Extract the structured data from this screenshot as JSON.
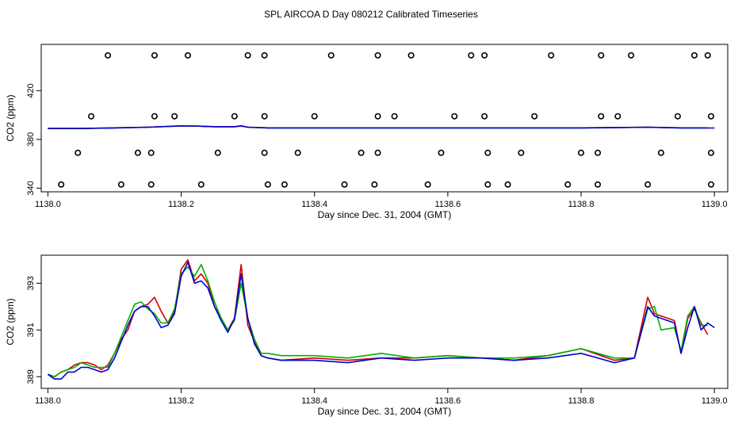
{
  "title": "SPL AIRCOA D  Day 080212  Calibrated Timeseries",
  "chart_data": [
    {
      "type": "scatter",
      "xlabel": "Day since Dec. 31, 2004 (GMT)",
      "ylabel": "CO2 (ppm)",
      "xlim": [
        1137.99,
        1139.02
      ],
      "ylim": [
        337,
        458
      ],
      "xticks": [
        1138.0,
        1138.2,
        1138.4,
        1138.6,
        1138.8,
        1139.0
      ],
      "xtick_labels": [
        "1138.0",
        "1138.2",
        "1138.4",
        "1138.6",
        "1138.8",
        "1139.0"
      ],
      "yticks": [
        340,
        380,
        420
      ],
      "ytick_labels": [
        "340",
        "380",
        "420"
      ],
      "grid": false,
      "markers": {
        "color": "#000000",
        "points": [
          [
            1138.09,
            449
          ],
          [
            1138.16,
            449
          ],
          [
            1138.21,
            449
          ],
          [
            1138.3,
            449
          ],
          [
            1138.325,
            449
          ],
          [
            1138.425,
            449
          ],
          [
            1138.495,
            449
          ],
          [
            1138.545,
            449
          ],
          [
            1138.635,
            449
          ],
          [
            1138.655,
            449
          ],
          [
            1138.755,
            449
          ],
          [
            1138.83,
            449
          ],
          [
            1138.875,
            449
          ],
          [
            1138.97,
            449
          ],
          [
            1138.99,
            449
          ],
          [
            1138.065,
            399
          ],
          [
            1138.16,
            399
          ],
          [
            1138.19,
            399
          ],
          [
            1138.28,
            399
          ],
          [
            1138.325,
            399
          ],
          [
            1138.4,
            399
          ],
          [
            1138.495,
            399
          ],
          [
            1138.52,
            399
          ],
          [
            1138.61,
            399
          ],
          [
            1138.655,
            399
          ],
          [
            1138.73,
            399
          ],
          [
            1138.83,
            399
          ],
          [
            1138.855,
            399
          ],
          [
            1138.945,
            399
          ],
          [
            1138.995,
            399
          ],
          [
            1138.045,
            369
          ],
          [
            1138.135,
            369
          ],
          [
            1138.155,
            369
          ],
          [
            1138.255,
            369
          ],
          [
            1138.325,
            369
          ],
          [
            1138.375,
            369
          ],
          [
            1138.47,
            369
          ],
          [
            1138.495,
            369
          ],
          [
            1138.59,
            369
          ],
          [
            1138.66,
            369
          ],
          [
            1138.71,
            369
          ],
          [
            1138.8,
            369
          ],
          [
            1138.825,
            369
          ],
          [
            1138.92,
            369
          ],
          [
            1138.995,
            369
          ],
          [
            1138.02,
            343
          ],
          [
            1138.11,
            343
          ],
          [
            1138.155,
            343
          ],
          [
            1138.23,
            343
          ],
          [
            1138.33,
            343
          ],
          [
            1138.355,
            343
          ],
          [
            1138.445,
            343
          ],
          [
            1138.49,
            343
          ],
          [
            1138.57,
            343
          ],
          [
            1138.66,
            343
          ],
          [
            1138.69,
            343
          ],
          [
            1138.78,
            343
          ],
          [
            1138.825,
            343
          ],
          [
            1138.9,
            343
          ],
          [
            1138.995,
            343
          ]
        ]
      },
      "series": [
        {
          "color": "#00b000",
          "x": [
            1138.0,
            1138.05,
            1138.1,
            1138.15,
            1138.2,
            1138.22,
            1138.25,
            1138.28,
            1138.29,
            1138.3,
            1138.33,
            1138.4,
            1138.5,
            1138.6,
            1138.7,
            1138.8,
            1138.9,
            1138.95,
            1138.99
          ],
          "values": [
            389,
            389,
            389.5,
            390,
            391,
            391,
            390.5,
            390.5,
            391,
            390,
            389.5,
            389.5,
            389.5,
            389.5,
            389.5,
            389.5,
            390,
            389.5,
            389.5
          ]
        },
        {
          "color": "#d00000",
          "x": [
            1138.0,
            1138.05,
            1138.1,
            1138.15,
            1138.2,
            1138.22,
            1138.25,
            1138.28,
            1138.29,
            1138.3,
            1138.33,
            1138.4,
            1138.5,
            1138.6,
            1138.7,
            1138.8,
            1138.9,
            1138.95,
            1138.99
          ],
          "values": [
            389,
            389,
            389.5,
            390,
            391.2,
            391,
            390.5,
            390.5,
            391.2,
            390,
            389.5,
            389.5,
            389.5,
            389.5,
            389.5,
            389.5,
            390,
            389.5,
            389.5
          ]
        },
        {
          "color": "#0000d0",
          "x": [
            1138.0,
            1138.05,
            1138.1,
            1138.15,
            1138.2,
            1138.22,
            1138.25,
            1138.28,
            1138.29,
            1138.3,
            1138.33,
            1138.4,
            1138.5,
            1138.6,
            1138.7,
            1138.8,
            1138.9,
            1138.95,
            1139.0
          ],
          "values": [
            389,
            389,
            389.4,
            390,
            391,
            391,
            390.4,
            390.4,
            391,
            390,
            389.4,
            389.4,
            389.4,
            389.4,
            389.4,
            389.4,
            390,
            389.4,
            389.4
          ]
        }
      ]
    },
    {
      "type": "line",
      "xlabel": "Day since Dec. 31, 2004 (GMT)",
      "ylabel": "CO2 (ppm)",
      "xlim": [
        1137.99,
        1139.02
      ],
      "ylim": [
        388.5,
        394.2
      ],
      "xticks": [
        1138.0,
        1138.2,
        1138.4,
        1138.6,
        1138.8,
        1139.0
      ],
      "xtick_labels": [
        "1138.0",
        "1138.2",
        "1138.4",
        "1138.6",
        "1138.8",
        "1139.0"
      ],
      "yticks": [
        389,
        391,
        393
      ],
      "ytick_labels": [
        "389",
        "391",
        "393"
      ],
      "grid": false,
      "series": [
        {
          "color": "#d00000",
          "x": [
            1138.0,
            1138.01,
            1138.02,
            1138.03,
            1138.04,
            1138.05,
            1138.06,
            1138.07,
            1138.08,
            1138.09,
            1138.1,
            1138.11,
            1138.12,
            1138.13,
            1138.14,
            1138.15,
            1138.16,
            1138.17,
            1138.18,
            1138.19,
            1138.2,
            1138.21,
            1138.22,
            1138.23,
            1138.24,
            1138.25,
            1138.26,
            1138.27,
            1138.28,
            1138.29,
            1138.3,
            1138.31,
            1138.32,
            1138.33,
            1138.35,
            1138.4,
            1138.45,
            1138.5,
            1138.55,
            1138.6,
            1138.65,
            1138.7,
            1138.75,
            1138.8,
            1138.85,
            1138.88,
            1138.9,
            1138.91,
            1138.92,
            1138.94,
            1138.95,
            1138.96,
            1138.97,
            1138.98,
            1138.99
          ],
          "values": [
            389.1,
            389.0,
            389.2,
            389.3,
            389.5,
            389.6,
            389.6,
            389.5,
            389.3,
            389.5,
            390.0,
            390.6,
            391.0,
            391.8,
            392.0,
            392.1,
            392.4,
            391.8,
            391.3,
            391.8,
            393.6,
            394.0,
            393.1,
            393.4,
            393.0,
            392.0,
            391.5,
            391.0,
            391.5,
            393.8,
            391.2,
            390.5,
            389.9,
            389.8,
            389.7,
            389.8,
            389.7,
            389.8,
            389.8,
            389.9,
            389.8,
            389.7,
            389.9,
            390.2,
            389.7,
            389.8,
            392.4,
            391.7,
            391.6,
            391.4,
            390.0,
            391.5,
            391.9,
            391.3,
            390.8
          ]
        },
        {
          "color": "#00b000",
          "x": [
            1138.0,
            1138.01,
            1138.02,
            1138.03,
            1138.04,
            1138.05,
            1138.06,
            1138.07,
            1138.08,
            1138.09,
            1138.1,
            1138.11,
            1138.12,
            1138.13,
            1138.14,
            1138.15,
            1138.16,
            1138.17,
            1138.18,
            1138.19,
            1138.2,
            1138.21,
            1138.22,
            1138.23,
            1138.24,
            1138.25,
            1138.26,
            1138.27,
            1138.28,
            1138.29,
            1138.3,
            1138.31,
            1138.32,
            1138.33,
            1138.35,
            1138.4,
            1138.45,
            1138.5,
            1138.55,
            1138.6,
            1138.65,
            1138.7,
            1138.75,
            1138.8,
            1138.85,
            1138.88,
            1138.9,
            1138.91,
            1138.92,
            1138.94,
            1138.95,
            1138.96,
            1138.97,
            1138.98,
            1138.99
          ],
          "values": [
            389.1,
            389.0,
            389.2,
            389.3,
            389.4,
            389.6,
            389.5,
            389.4,
            389.4,
            389.4,
            390.0,
            390.7,
            391.4,
            392.1,
            392.2,
            391.9,
            391.7,
            391.3,
            391.3,
            391.9,
            393.4,
            393.7,
            393.3,
            393.8,
            393.1,
            392.2,
            391.5,
            391.0,
            391.4,
            393.0,
            391.5,
            390.6,
            390.0,
            390.0,
            389.9,
            389.9,
            389.8,
            390.0,
            389.8,
            389.9,
            389.8,
            389.8,
            389.9,
            390.2,
            389.8,
            389.8,
            391.9,
            392.0,
            391.0,
            391.1,
            390.1,
            391.6,
            392.0,
            391.2,
            391.2
          ]
        },
        {
          "color": "#0000d0",
          "x": [
            1138.0,
            1138.01,
            1138.02,
            1138.03,
            1138.04,
            1138.05,
            1138.06,
            1138.07,
            1138.08,
            1138.09,
            1138.1,
            1138.11,
            1138.12,
            1138.13,
            1138.14,
            1138.15,
            1138.16,
            1138.17,
            1138.18,
            1138.19,
            1138.2,
            1138.21,
            1138.22,
            1138.23,
            1138.24,
            1138.25,
            1138.26,
            1138.27,
            1138.28,
            1138.29,
            1138.3,
            1138.31,
            1138.32,
            1138.33,
            1138.35,
            1138.4,
            1138.45,
            1138.5,
            1138.55,
            1138.6,
            1138.65,
            1138.7,
            1138.75,
            1138.8,
            1138.85,
            1138.88,
            1138.9,
            1138.91,
            1138.92,
            1138.94,
            1138.95,
            1138.96,
            1138.97,
            1138.98,
            1138.99,
            1139.0
          ],
          "values": [
            389.1,
            388.9,
            388.9,
            389.2,
            389.2,
            389.4,
            389.4,
            389.3,
            389.2,
            389.3,
            389.8,
            390.5,
            391.2,
            391.8,
            392.0,
            392.0,
            391.6,
            391.1,
            391.2,
            391.7,
            393.3,
            393.9,
            393.0,
            393.1,
            392.8,
            392.0,
            391.4,
            390.9,
            391.5,
            393.4,
            391.5,
            390.4,
            389.9,
            389.8,
            389.7,
            389.7,
            389.6,
            389.8,
            389.7,
            389.8,
            389.8,
            389.7,
            389.8,
            390.0,
            389.6,
            389.8,
            392.0,
            391.6,
            391.5,
            391.3,
            390.0,
            391.1,
            392.0,
            391.0,
            391.3,
            391.1
          ]
        }
      ]
    }
  ]
}
